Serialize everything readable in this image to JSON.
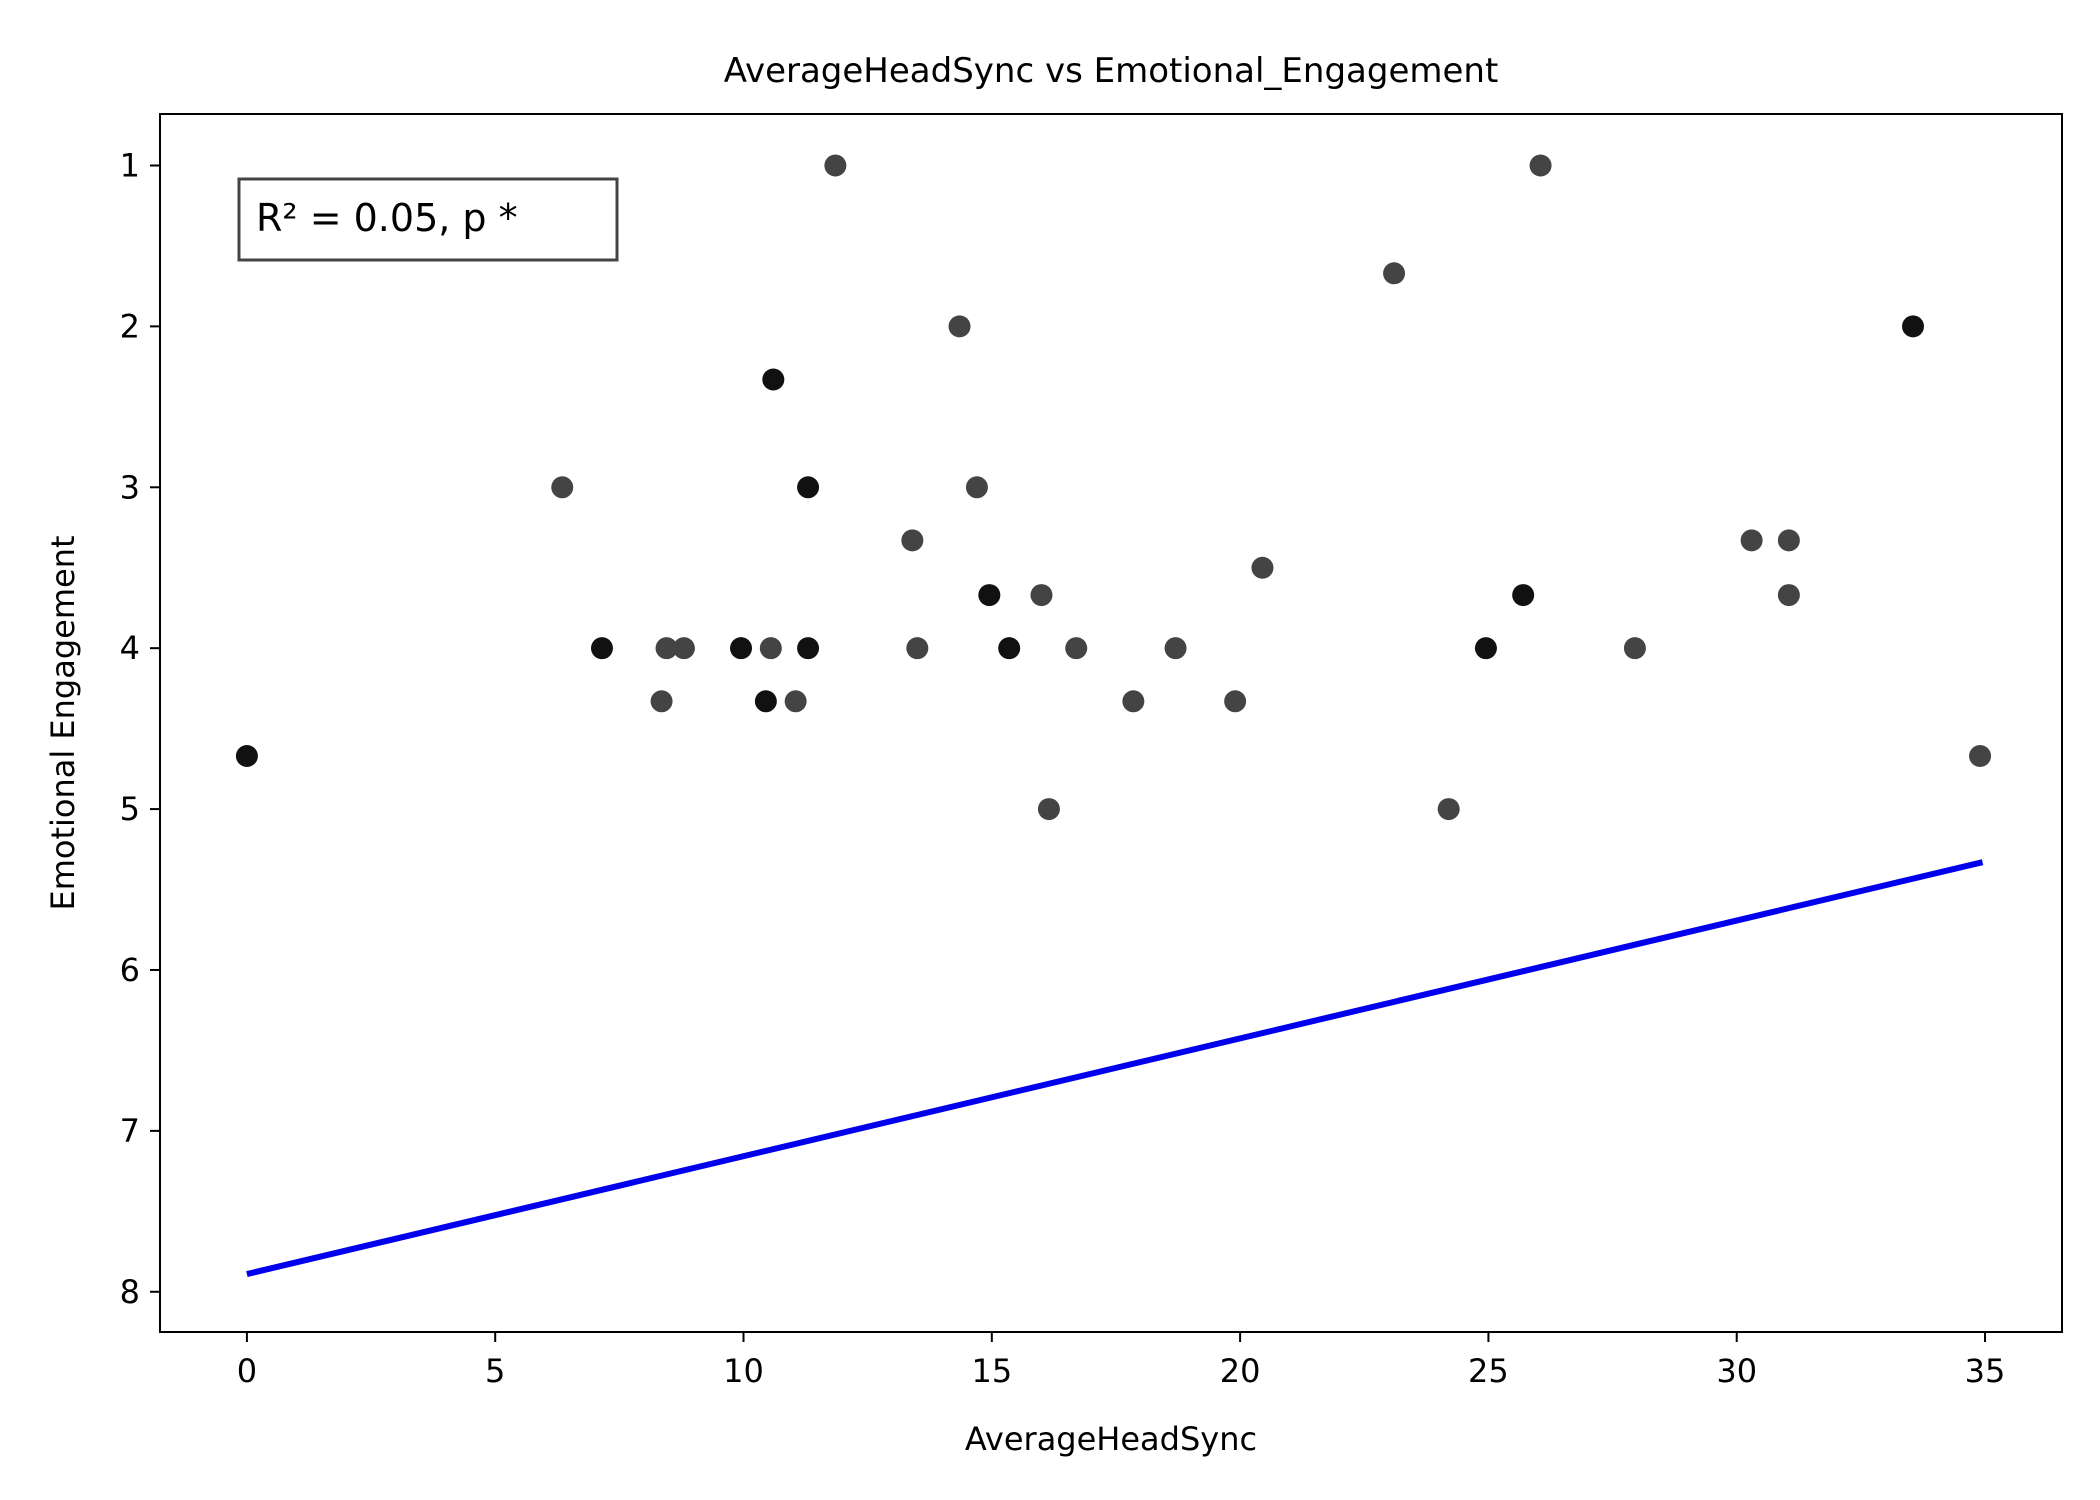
{
  "chart_data": {
    "type": "scatter",
    "title": "AverageHeadSync vs Emotional_Engagement",
    "xlabel": "AverageHeadSync",
    "ylabel": "Emotional Engagement",
    "xlim": [
      -1.75,
      36.55
    ],
    "ylim": [
      8.25,
      0.68
    ],
    "y_inverted": true,
    "xticks": [
      0,
      5,
      10,
      15,
      20,
      25,
      30,
      35
    ],
    "yticks": [
      1,
      2,
      3,
      4,
      5,
      6,
      7,
      8
    ],
    "grid": false,
    "annotation": "R² = 0.05, p *",
    "point_color": "#444444",
    "dark_point_color": "#111111",
    "line_color": "#0000ee",
    "points": [
      {
        "x": 0.0,
        "y": 4.67,
        "dark": true
      },
      {
        "x": 6.35,
        "y": 3.0,
        "dark": false
      },
      {
        "x": 7.15,
        "y": 4.0,
        "dark": true
      },
      {
        "x": 8.35,
        "y": 4.33,
        "dark": false
      },
      {
        "x": 8.45,
        "y": 4.0,
        "dark": false
      },
      {
        "x": 8.8,
        "y": 4.0,
        "dark": false
      },
      {
        "x": 9.95,
        "y": 4.0,
        "dark": true
      },
      {
        "x": 10.45,
        "y": 4.33,
        "dark": true
      },
      {
        "x": 10.55,
        "y": 4.0,
        "dark": false
      },
      {
        "x": 10.6,
        "y": 2.33,
        "dark": true
      },
      {
        "x": 11.05,
        "y": 4.33,
        "dark": false
      },
      {
        "x": 11.3,
        "y": 3.0,
        "dark": true
      },
      {
        "x": 11.3,
        "y": 4.0,
        "dark": true
      },
      {
        "x": 11.85,
        "y": 1.0,
        "dark": false
      },
      {
        "x": 13.4,
        "y": 3.33,
        "dark": false
      },
      {
        "x": 13.5,
        "y": 4.0,
        "dark": false
      },
      {
        "x": 14.35,
        "y": 2.0,
        "dark": false
      },
      {
        "x": 14.7,
        "y": 3.0,
        "dark": false
      },
      {
        "x": 14.95,
        "y": 3.67,
        "dark": true
      },
      {
        "x": 15.35,
        "y": 4.0,
        "dark": true
      },
      {
        "x": 16.0,
        "y": 3.67,
        "dark": false
      },
      {
        "x": 16.15,
        "y": 5.0,
        "dark": false
      },
      {
        "x": 16.7,
        "y": 4.0,
        "dark": false
      },
      {
        "x": 17.85,
        "y": 4.33,
        "dark": false
      },
      {
        "x": 18.7,
        "y": 4.0,
        "dark": false
      },
      {
        "x": 19.9,
        "y": 4.33,
        "dark": false
      },
      {
        "x": 20.45,
        "y": 3.5,
        "dark": false
      },
      {
        "x": 23.1,
        "y": 1.67,
        "dark": false
      },
      {
        "x": 24.2,
        "y": 5.0,
        "dark": false
      },
      {
        "x": 24.95,
        "y": 4.0,
        "dark": true
      },
      {
        "x": 25.7,
        "y": 3.67,
        "dark": true
      },
      {
        "x": 26.05,
        "y": 1.0,
        "dark": false
      },
      {
        "x": 27.95,
        "y": 4.0,
        "dark": false
      },
      {
        "x": 30.3,
        "y": 3.33,
        "dark": false
      },
      {
        "x": 31.05,
        "y": 3.33,
        "dark": false
      },
      {
        "x": 31.05,
        "y": 3.67,
        "dark": false
      },
      {
        "x": 33.55,
        "y": 2.0,
        "dark": true
      },
      {
        "x": 34.9,
        "y": 4.67,
        "dark": false
      }
    ],
    "fit_line": {
      "x": [
        0.0,
        34.95
      ],
      "y": [
        7.89,
        5.33
      ]
    }
  }
}
